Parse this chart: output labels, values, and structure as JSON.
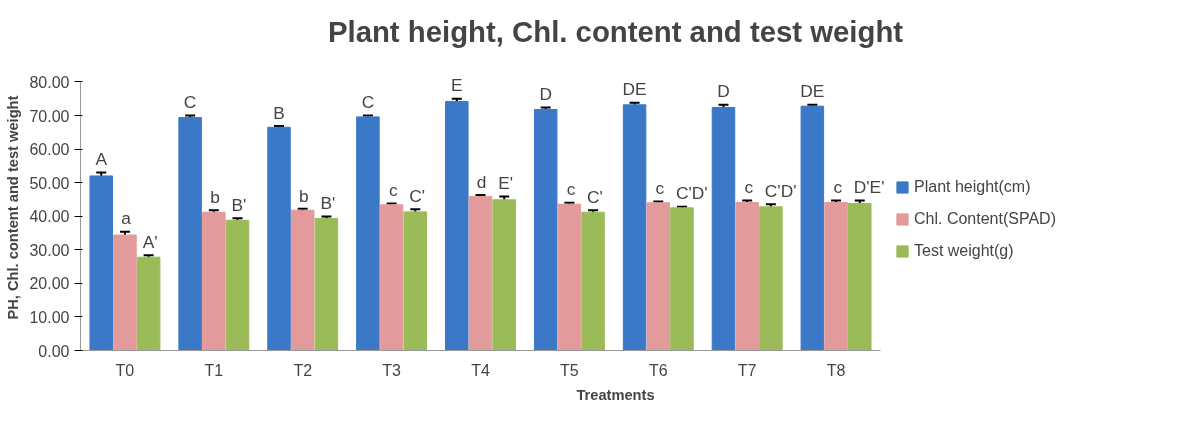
{
  "chart_data": {
    "type": "bar",
    "title": "Plant height, Chl. content and test weight",
    "xlabel": "Treatments",
    "ylabel": "PH, Chl.  content and test weight",
    "categories": [
      "T0",
      "T1",
      "T2",
      "T3",
      "T4",
      "T5",
      "T6",
      "T7",
      "T8"
    ],
    "series": [
      {
        "name": "Plant height(cm)",
        "color": "#3c78c8",
        "values": [
          52.0,
          69.4,
          66.5,
          69.6,
          74.2,
          71.8,
          73.2,
          72.4,
          72.8
        ],
        "errors": [
          1.0,
          0.6,
          0.4,
          0.4,
          0.8,
          0.6,
          0.6,
          0.8,
          0.4
        ],
        "value_labels": [
          "A",
          "C",
          "B",
          "C",
          "E",
          "D",
          "DE",
          "D",
          "DE"
        ]
      },
      {
        "name": "Chl. Content(SPAD)",
        "color": "#e39a9a",
        "values": [
          34.4,
          41.2,
          41.8,
          43.4,
          45.9,
          43.6,
          44.0,
          44.1,
          44.1
        ],
        "errors": [
          1.0,
          0.6,
          0.4,
          0.4,
          0.4,
          0.4,
          0.4,
          0.6,
          0.6
        ],
        "value_labels": [
          "a",
          "b",
          "b",
          "c",
          "d",
          "c",
          "c",
          "c",
          "c"
        ]
      },
      {
        "name": "Test weight(g)",
        "color": "#9bbb59",
        "values": [
          27.8,
          38.8,
          39.3,
          41.3,
          44.9,
          41.2,
          42.5,
          42.8,
          43.8
        ],
        "errors": [
          0.6,
          0.6,
          0.6,
          0.8,
          1.0,
          0.6,
          0.3,
          0.8,
          0.9
        ],
        "value_labels": [
          "A'",
          "B'",
          "B'",
          "C'",
          "E'",
          "C'",
          "C'D'",
          "C'D'",
          "D'E'"
        ]
      }
    ],
    "ylim": [
      0,
      80
    ],
    "yticks": [
      {
        "value": 0,
        "label": "0.00"
      },
      {
        "value": 10,
        "label": "10.00"
      },
      {
        "value": 20,
        "label": "20.00"
      },
      {
        "value": 30,
        "label": "30.00"
      },
      {
        "value": 40,
        "label": "40.00"
      },
      {
        "value": 50,
        "label": "50.00"
      },
      {
        "value": 60,
        "label": "60.00"
      },
      {
        "value": 70,
        "label": "70.00"
      },
      {
        "value": 80,
        "label": "80.00"
      }
    ],
    "legend": "right",
    "grid": false
  }
}
